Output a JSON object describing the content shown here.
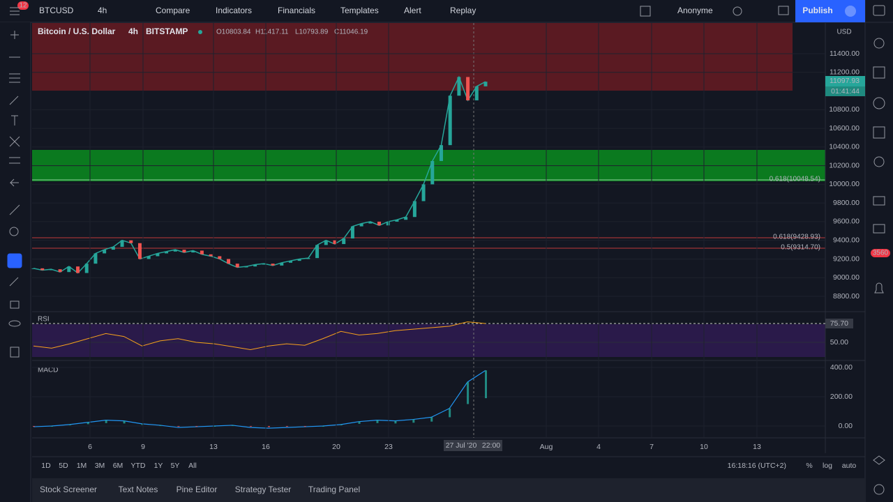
{
  "toolbar": {
    "symbol": "BTCUSD",
    "interval": "4h",
    "buttons": [
      "Compare",
      "Indicators",
      "Financials",
      "Templates",
      "Alert",
      "Replay"
    ],
    "user": "Anonyme",
    "publish": "Publish",
    "badge": "12"
  },
  "legend": {
    "title": "Bitcoin / U.S. Dollar",
    "interval": "4h",
    "exchange": "BITSTAMP",
    "ohlc": [
      "O10803.84",
      "H11417.11",
      "L10793.89",
      "C11046.19"
    ]
  },
  "price_axis": {
    "currency": "USD",
    "ticks": [
      {
        "value": 11400,
        "label": "11400.00"
      },
      {
        "value": 11200,
        "label": "11200.00"
      },
      {
        "value": 10800,
        "label": "10800.00"
      },
      {
        "value": 10600,
        "label": "10600.00"
      },
      {
        "value": 10400,
        "label": "10400.00"
      },
      {
        "value": 10200,
        "label": "10200.00"
      },
      {
        "value": 10000,
        "label": "10000.00"
      },
      {
        "value": 9800,
        "label": "9800.00"
      },
      {
        "value": 9600,
        "label": "9600.00"
      },
      {
        "value": 9400,
        "label": "9400.00"
      },
      {
        "value": 9200,
        "label": "9200.00"
      },
      {
        "value": 9000,
        "label": "9000.00"
      },
      {
        "value": 8800,
        "label": "8800.00"
      }
    ],
    "last_price": {
      "value": 11097.93,
      "label": "11097.93"
    },
    "countdown": "01:41:44"
  },
  "fib_labels": [
    "0.618(10048.54)",
    "0.618(9428.93)",
    "0.5(9314.70)"
  ],
  "price_series": [
    9100,
    9080,
    9090,
    9060,
    9120,
    9050,
    9150,
    9260,
    9300,
    9330,
    9400,
    9370,
    9200,
    9230,
    9260,
    9280,
    9300,
    9270,
    9290,
    9250,
    9230,
    9200,
    9150,
    9110,
    9120,
    9140,
    9150,
    9130,
    9160,
    9180,
    9200,
    9210,
    9350,
    9400,
    9360,
    9420,
    9550,
    9580,
    9600,
    9560,
    9600,
    9620,
    9650,
    9820,
    10000,
    10250,
    10420,
    10950,
    11150,
    10900,
    11050,
    11100
  ],
  "rsi": {
    "name": "RSI",
    "current": {
      "value": 75.7,
      "label": "75.70"
    },
    "ticks": [
      {
        "value": 50,
        "label": "50.00"
      }
    ],
    "values": [
      45,
      42,
      48,
      55,
      62,
      58,
      45,
      52,
      55,
      50,
      48,
      44,
      40,
      45,
      48,
      46,
      55,
      65,
      60,
      62,
      66,
      68,
      70,
      72,
      78,
      75.7
    ]
  },
  "macd": {
    "name": "MACD",
    "ticks": [
      {
        "value": 400,
        "label": "400.00"
      },
      {
        "value": 200,
        "label": "200.00"
      },
      {
        "value": 0,
        "label": "0.00"
      }
    ],
    "values": [
      -5,
      0,
      10,
      25,
      40,
      35,
      15,
      5,
      -10,
      -5,
      0,
      5,
      -10,
      -15,
      -10,
      -5,
      0,
      10,
      30,
      40,
      35,
      45,
      60,
      120,
      300,
      380
    ]
  },
  "time_axis": {
    "labels": [
      "6",
      "9",
      "13",
      "16",
      "20",
      "23",
      "Aug",
      "4",
      "7",
      "10",
      "13"
    ],
    "crosshair_date": "27 Jul '20",
    "crosshair_time": "22:00"
  },
  "bottom_bar": {
    "ranges": [
      "1D",
      "5D",
      "1M",
      "3M",
      "6M",
      "YTD",
      "1Y",
      "5Y",
      "All"
    ],
    "clock": "16:18:16 (UTC+2)",
    "options": [
      "%",
      "log",
      "auto"
    ]
  },
  "tabs": [
    "Stock Screener",
    "Text Notes",
    "Pine Editor",
    "Strategy Tester",
    "Trading Panel"
  ],
  "notification_badge": "3560"
}
